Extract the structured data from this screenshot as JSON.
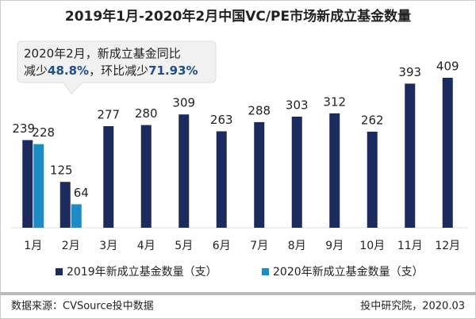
{
  "chart_data": {
    "type": "bar",
    "title": "2019年1月-2020年2月中国VC/PE市场新成立基金数量",
    "categories": [
      "1月",
      "2月",
      "3月",
      "4月",
      "5月",
      "6月",
      "7月",
      "8月",
      "9月",
      "10月",
      "11月",
      "12月"
    ],
    "series": [
      {
        "name": "2019年新成立基金数量（支）",
        "color": "#1c2b5e",
        "values": [
          239,
          125,
          277,
          280,
          309,
          263,
          288,
          303,
          312,
          262,
          393,
          409
        ]
      },
      {
        "name": "2020年新成立基金数量（支）",
        "color": "#1b8cc4",
        "values": [
          228,
          64,
          null,
          null,
          null,
          null,
          null,
          null,
          null,
          null,
          null,
          null
        ]
      }
    ],
    "annotation": {
      "line1": "2020年2月，新成立基金同比",
      "line2": [
        "减少",
        "48.8%",
        "，环比减少",
        "71.93%"
      ]
    },
    "source": "数据来源：CVSource投中数据",
    "credit": "投中研究院，2020.03"
  }
}
